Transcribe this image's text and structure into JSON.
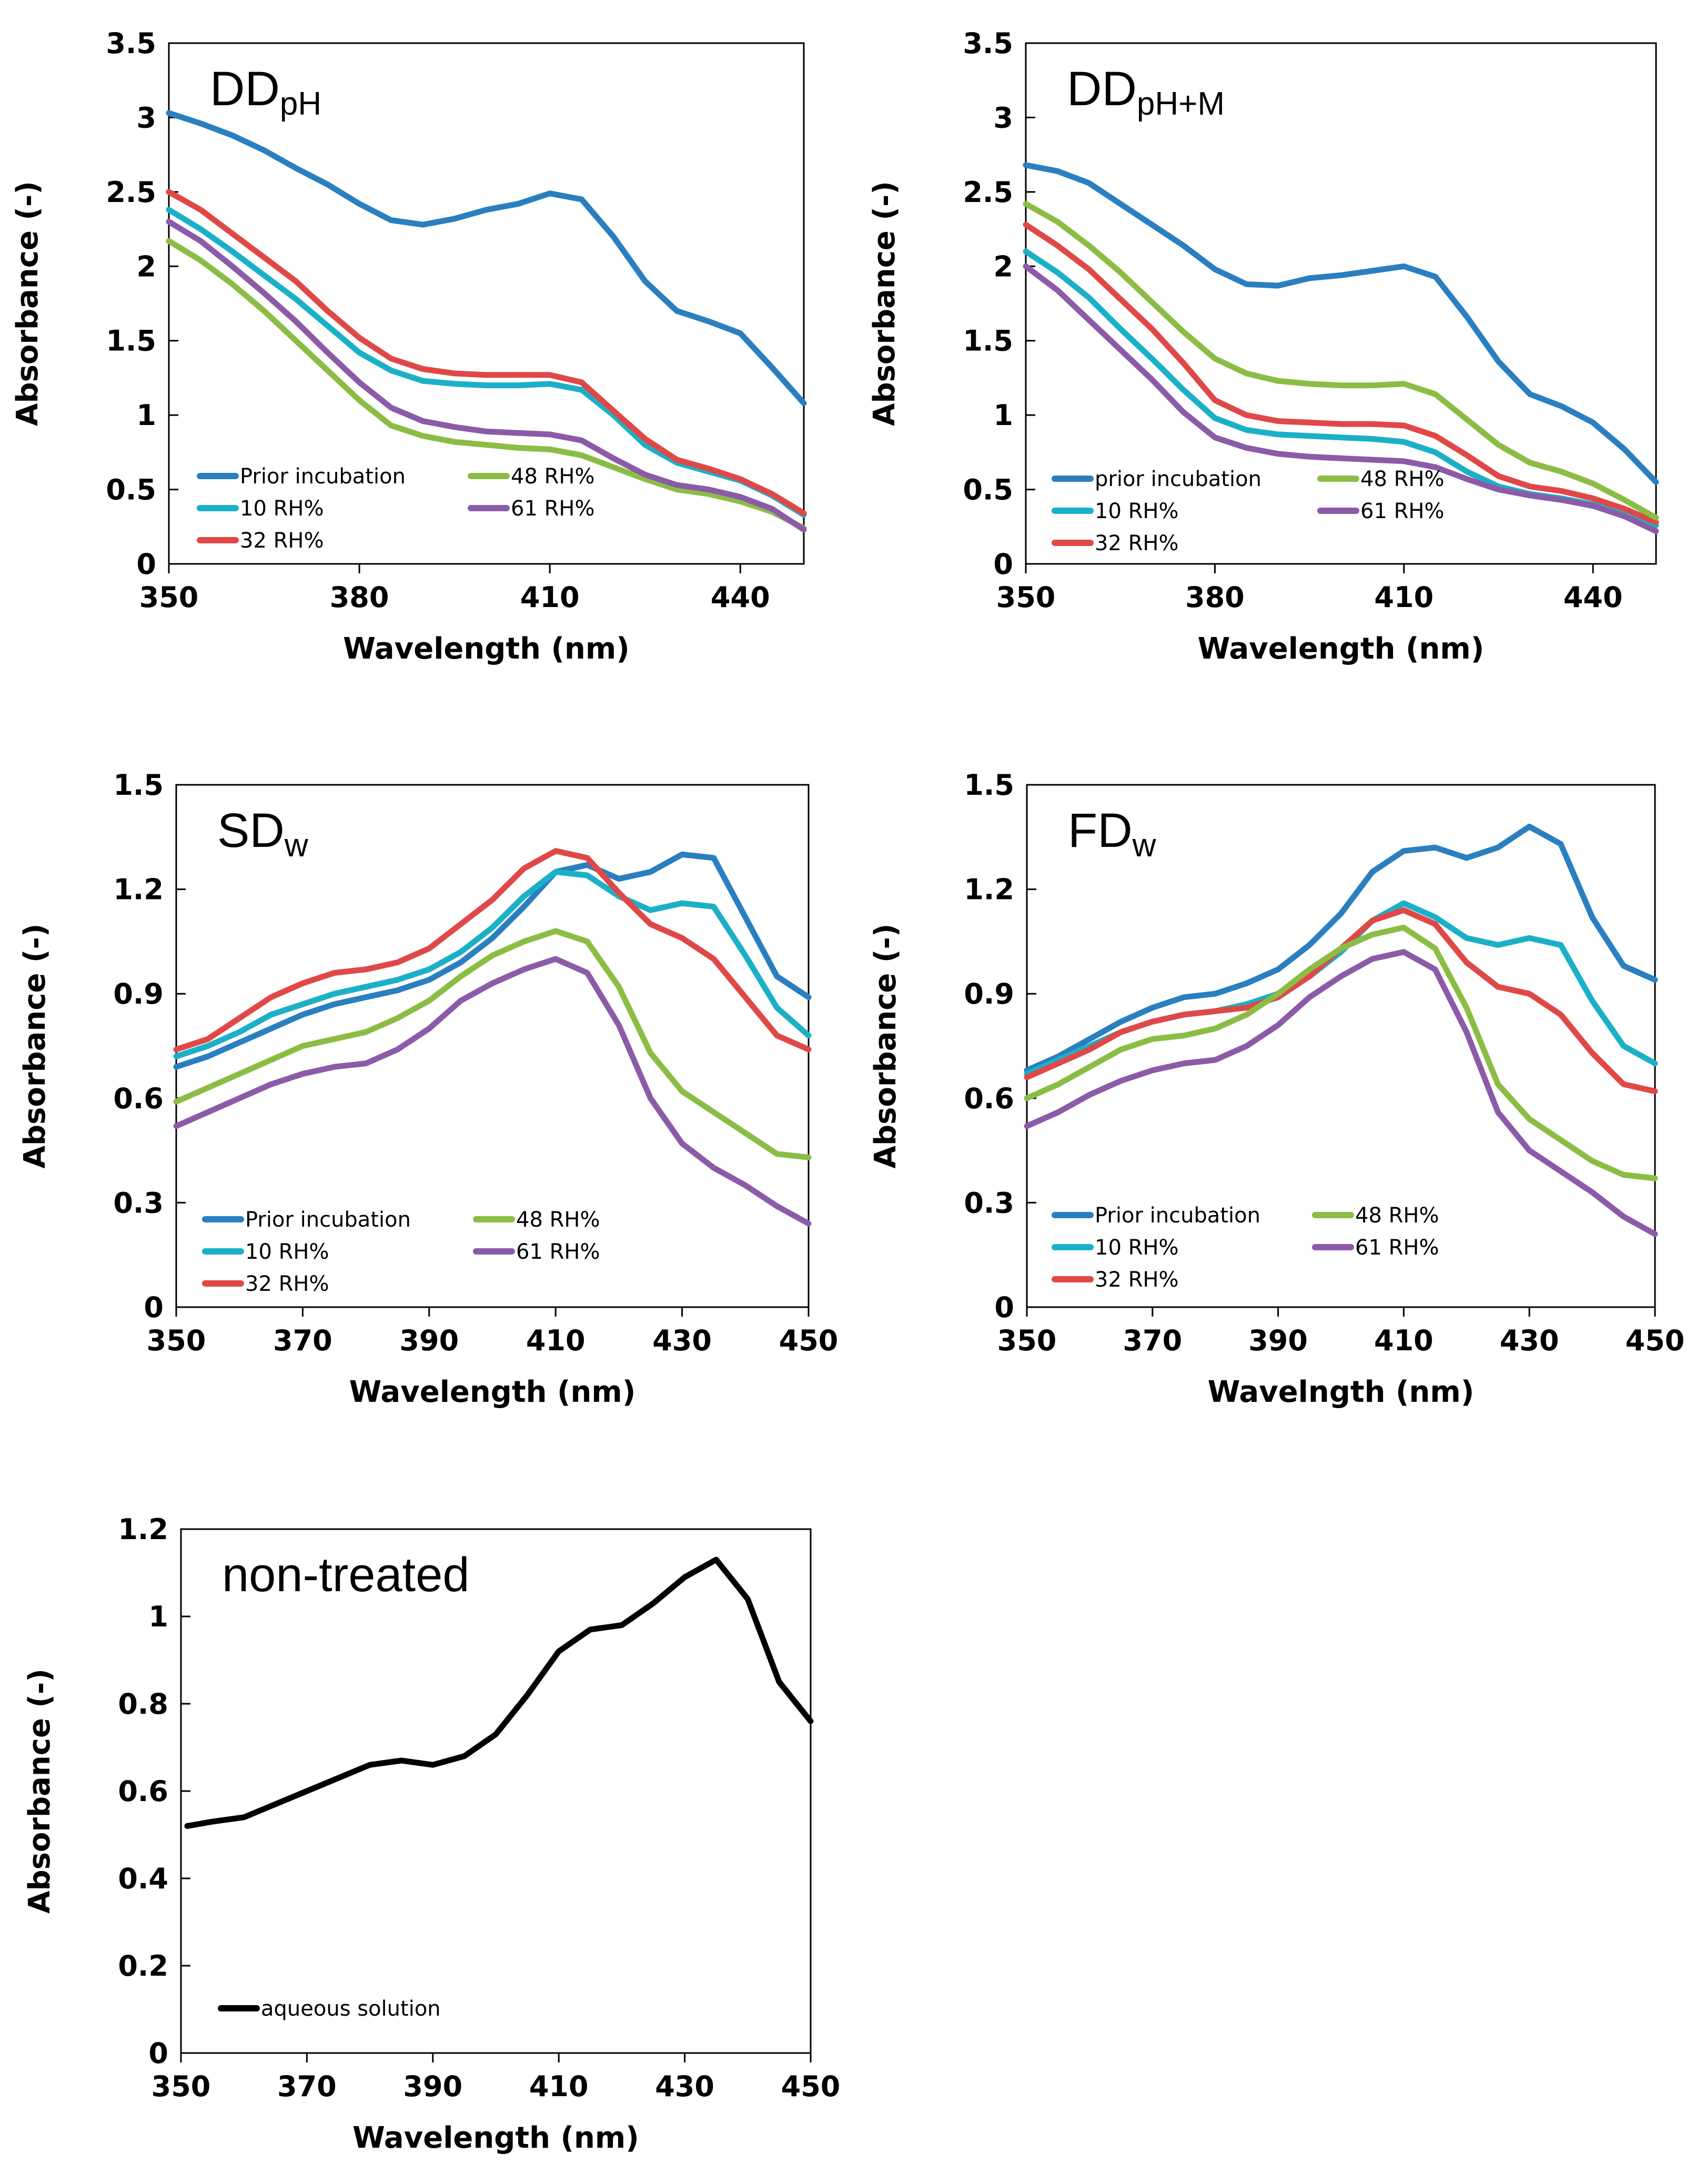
{
  "colors": {
    "prior": "#2a7fc0",
    "rh10": "#1bb0c8",
    "rh32": "#e04848",
    "rh48": "#8bbd45",
    "rh61": "#8c5ba8",
    "aqueous": "#000000"
  },
  "chart_data": [
    {
      "type": "line",
      "title": "DD",
      "title_subscript": "pH",
      "xlabel": "Wavelength (nm)",
      "ylabel": "Absorbance (-)",
      "xlim": [
        350,
        450
      ],
      "ylim": [
        0,
        3.5
      ],
      "xticks": [
        350,
        380,
        410,
        440
      ],
      "xtick_labels": [
        "350",
        "380",
        "410",
        "440"
      ],
      "yticks": [
        0,
        0.5,
        1,
        1.5,
        2,
        2.5,
        3,
        3.5
      ],
      "ytick_labels": [
        "0",
        "0.5",
        "1",
        "1.5",
        "2",
        "2.5",
        "3",
        "3.5"
      ],
      "x": [
        350,
        355,
        360,
        365,
        370,
        375,
        380,
        385,
        390,
        395,
        400,
        405,
        410,
        415,
        420,
        425,
        430,
        435,
        440,
        445,
        450
      ],
      "series": [
        {
          "name": "Prior incubation",
          "color_key": "prior",
          "values": [
            3.03,
            2.96,
            2.88,
            2.78,
            2.66,
            2.55,
            2.42,
            2.31,
            2.28,
            2.32,
            2.38,
            2.42,
            2.49,
            2.45,
            2.2,
            1.9,
            1.7,
            1.63,
            1.55,
            1.32,
            1.08
          ]
        },
        {
          "name": "10 RH%",
          "color_key": "rh10",
          "values": [
            2.38,
            2.25,
            2.1,
            1.94,
            1.78,
            1.6,
            1.42,
            1.3,
            1.23,
            1.21,
            1.2,
            1.2,
            1.21,
            1.17,
            1.0,
            0.8,
            0.68,
            0.62,
            0.56,
            0.46,
            0.33
          ]
        },
        {
          "name": "32 RH%",
          "color_key": "rh32",
          "values": [
            2.5,
            2.38,
            2.22,
            2.06,
            1.9,
            1.7,
            1.52,
            1.38,
            1.31,
            1.28,
            1.27,
            1.27,
            1.27,
            1.22,
            1.03,
            0.84,
            0.7,
            0.64,
            0.57,
            0.47,
            0.34
          ]
        },
        {
          "name": "48 RH%",
          "color_key": "rh48",
          "values": [
            2.17,
            2.04,
            1.88,
            1.7,
            1.5,
            1.3,
            1.1,
            0.93,
            0.86,
            0.82,
            0.8,
            0.78,
            0.77,
            0.73,
            0.65,
            0.57,
            0.5,
            0.47,
            0.42,
            0.35,
            0.24
          ]
        },
        {
          "name": "61 RH%",
          "color_key": "rh61",
          "values": [
            2.3,
            2.17,
            2.0,
            1.82,
            1.63,
            1.42,
            1.22,
            1.05,
            0.96,
            0.92,
            0.89,
            0.88,
            0.87,
            0.83,
            0.71,
            0.6,
            0.53,
            0.5,
            0.45,
            0.37,
            0.23
          ]
        }
      ],
      "legend": [
        "Prior incubation",
        "10 RH%",
        "32 RH%",
        "48 RH%",
        "61 RH%"
      ],
      "legend_position": "bottom-left"
    },
    {
      "type": "line",
      "title": "DD",
      "title_subscript": "pH+M",
      "xlabel": "Wavelength (nm)",
      "ylabel": "Absorbance (-)",
      "xlim": [
        350,
        450
      ],
      "ylim": [
        0,
        3.5
      ],
      "xticks": [
        350,
        380,
        410,
        440
      ],
      "xtick_labels": [
        "350",
        "380",
        "410",
        "440"
      ],
      "yticks": [
        0,
        0.5,
        1,
        1.5,
        2,
        2.5,
        3,
        3.5
      ],
      "ytick_labels": [
        "0",
        "0.5",
        "1",
        "1.5",
        "2",
        "2.5",
        "3",
        "3.5"
      ],
      "x": [
        350,
        355,
        360,
        365,
        370,
        375,
        380,
        385,
        390,
        395,
        400,
        405,
        410,
        415,
        420,
        425,
        430,
        435,
        440,
        445,
        450
      ],
      "series": [
        {
          "name": "prior incubation",
          "color_key": "prior",
          "values": [
            2.68,
            2.64,
            2.56,
            2.42,
            2.28,
            2.14,
            1.98,
            1.88,
            1.87,
            1.92,
            1.94,
            1.97,
            2.0,
            1.93,
            1.66,
            1.36,
            1.14,
            1.06,
            0.95,
            0.77,
            0.55
          ]
        },
        {
          "name": "10 RH%",
          "color_key": "rh10",
          "values": [
            2.1,
            1.96,
            1.79,
            1.58,
            1.38,
            1.17,
            0.98,
            0.9,
            0.87,
            0.86,
            0.85,
            0.84,
            0.82,
            0.75,
            0.62,
            0.52,
            0.47,
            0.44,
            0.4,
            0.33,
            0.26
          ]
        },
        {
          "name": "32 RH%",
          "color_key": "rh32",
          "values": [
            2.28,
            2.14,
            1.98,
            1.78,
            1.58,
            1.35,
            1.1,
            1.0,
            0.96,
            0.95,
            0.94,
            0.94,
            0.93,
            0.86,
            0.73,
            0.59,
            0.52,
            0.49,
            0.44,
            0.37,
            0.28
          ]
        },
        {
          "name": "48 RH%",
          "color_key": "rh48",
          "values": [
            2.42,
            2.3,
            2.14,
            1.96,
            1.76,
            1.56,
            1.38,
            1.28,
            1.23,
            1.21,
            1.2,
            1.2,
            1.21,
            1.14,
            0.97,
            0.8,
            0.68,
            0.62,
            0.54,
            0.43,
            0.31
          ]
        },
        {
          "name": "61 RH%",
          "color_key": "rh61",
          "values": [
            2.0,
            1.84,
            1.64,
            1.44,
            1.24,
            1.02,
            0.85,
            0.78,
            0.74,
            0.72,
            0.71,
            0.7,
            0.69,
            0.65,
            0.57,
            0.5,
            0.46,
            0.43,
            0.39,
            0.32,
            0.22
          ]
        }
      ],
      "legend": [
        "prior incubation",
        "10 RH%",
        "32 RH%",
        "48 RH%",
        "61 RH%"
      ],
      "legend_position": "bottom-left"
    },
    {
      "type": "line",
      "title": "SD",
      "title_subscript": "w",
      "xlabel": "Wavelength (nm)",
      "ylabel": "Absorbance (-)",
      "xlim": [
        350,
        450
      ],
      "ylim": [
        0,
        1.5
      ],
      "xticks": [
        350,
        370,
        390,
        410,
        430,
        450
      ],
      "xtick_labels": [
        "350",
        "370",
        "390",
        "410",
        "430",
        "450"
      ],
      "yticks": [
        0,
        0.3,
        0.6,
        0.9,
        1.2,
        1.5
      ],
      "ytick_labels": [
        "0",
        "0.3",
        "0.6",
        "0.9",
        "1.2",
        "1.5"
      ],
      "x": [
        350,
        355,
        360,
        365,
        370,
        375,
        380,
        385,
        390,
        395,
        400,
        405,
        410,
        415,
        420,
        425,
        430,
        435,
        440,
        445,
        450
      ],
      "series": [
        {
          "name": "Prior incubation",
          "color_key": "prior",
          "values": [
            0.69,
            0.72,
            0.76,
            0.8,
            0.84,
            0.87,
            0.89,
            0.91,
            0.94,
            0.99,
            1.06,
            1.15,
            1.25,
            1.27,
            1.23,
            1.25,
            1.3,
            1.29,
            1.12,
            0.95,
            0.89
          ]
        },
        {
          "name": "10 RH%",
          "color_key": "rh10",
          "values": [
            0.72,
            0.75,
            0.79,
            0.84,
            0.87,
            0.9,
            0.92,
            0.94,
            0.97,
            1.02,
            1.09,
            1.18,
            1.25,
            1.24,
            1.18,
            1.14,
            1.16,
            1.15,
            1.01,
            0.86,
            0.78
          ]
        },
        {
          "name": "32 RH%",
          "color_key": "rh32",
          "values": [
            0.74,
            0.77,
            0.83,
            0.89,
            0.93,
            0.96,
            0.97,
            0.99,
            1.03,
            1.1,
            1.17,
            1.26,
            1.31,
            1.29,
            1.19,
            1.1,
            1.06,
            1.0,
            0.89,
            0.78,
            0.74
          ]
        },
        {
          "name": "48 RH%",
          "color_key": "rh48",
          "values": [
            0.59,
            0.63,
            0.67,
            0.71,
            0.75,
            0.77,
            0.79,
            0.83,
            0.88,
            0.95,
            1.01,
            1.05,
            1.08,
            1.05,
            0.92,
            0.73,
            0.62,
            0.56,
            0.5,
            0.44,
            0.43
          ]
        },
        {
          "name": "61 RH%",
          "color_key": "rh61",
          "values": [
            0.52,
            0.56,
            0.6,
            0.64,
            0.67,
            0.69,
            0.7,
            0.74,
            0.8,
            0.88,
            0.93,
            0.97,
            1.0,
            0.96,
            0.81,
            0.6,
            0.47,
            0.4,
            0.35,
            0.29,
            0.24
          ]
        }
      ],
      "legend": [
        "Prior incubation",
        "10 RH%",
        "32 RH%",
        "48 RH%",
        "61 RH%"
      ],
      "legend_position": "bottom-left"
    },
    {
      "type": "line",
      "title": "FD",
      "title_subscript": "w",
      "xlabel": "Wavelngth (nm)",
      "ylabel": "Absorbance (-)",
      "xlim": [
        350,
        450
      ],
      "ylim": [
        0,
        1.5
      ],
      "xticks": [
        350,
        370,
        390,
        410,
        430,
        450
      ],
      "xtick_labels": [
        "350",
        "370",
        "390",
        "410",
        "430",
        "450"
      ],
      "yticks": [
        0,
        0.3,
        0.6,
        0.9,
        1.2,
        1.5
      ],
      "ytick_labels": [
        "0",
        "0.3",
        "0.6",
        "0.9",
        "1.2",
        "1.5"
      ],
      "x": [
        350,
        355,
        360,
        365,
        370,
        375,
        380,
        385,
        390,
        395,
        400,
        405,
        410,
        415,
        420,
        425,
        430,
        435,
        440,
        445,
        450
      ],
      "series": [
        {
          "name": "Prior incubation",
          "color_key": "prior",
          "values": [
            0.68,
            0.72,
            0.77,
            0.82,
            0.86,
            0.89,
            0.9,
            0.93,
            0.97,
            1.04,
            1.13,
            1.25,
            1.31,
            1.32,
            1.29,
            1.32,
            1.38,
            1.33,
            1.12,
            0.98,
            0.94
          ]
        },
        {
          "name": "10 RH%",
          "color_key": "rh10",
          "values": [
            0.67,
            0.71,
            0.75,
            0.79,
            0.82,
            0.84,
            0.85,
            0.87,
            0.9,
            0.95,
            1.02,
            1.11,
            1.16,
            1.12,
            1.06,
            1.04,
            1.06,
            1.04,
            0.88,
            0.75,
            0.7
          ]
        },
        {
          "name": "32 RH%",
          "color_key": "rh32",
          "values": [
            0.66,
            0.7,
            0.74,
            0.79,
            0.82,
            0.84,
            0.85,
            0.86,
            0.89,
            0.95,
            1.03,
            1.11,
            1.14,
            1.1,
            0.99,
            0.92,
            0.9,
            0.84,
            0.73,
            0.64,
            0.62
          ]
        },
        {
          "name": "48 RH%",
          "color_key": "rh48",
          "values": [
            0.6,
            0.64,
            0.69,
            0.74,
            0.77,
            0.78,
            0.8,
            0.84,
            0.9,
            0.97,
            1.03,
            1.07,
            1.09,
            1.03,
            0.86,
            0.64,
            0.54,
            0.48,
            0.42,
            0.38,
            0.37
          ]
        },
        {
          "name": "61 RH%",
          "color_key": "rh61",
          "values": [
            0.52,
            0.56,
            0.61,
            0.65,
            0.68,
            0.7,
            0.71,
            0.75,
            0.81,
            0.89,
            0.95,
            1.0,
            1.02,
            0.97,
            0.79,
            0.56,
            0.45,
            0.39,
            0.33,
            0.26,
            0.21
          ]
        }
      ],
      "legend": [
        "Prior incubation",
        "10 RH%",
        "32 RH%",
        "48 RH%",
        "61 RH%"
      ],
      "legend_position": "bottom-left"
    },
    {
      "type": "line",
      "title": "non-treated",
      "title_subscript": "",
      "xlabel": "Wavelength (nm)",
      "ylabel": "Absorbance (-)",
      "xlim": [
        350,
        450
      ],
      "ylim": [
        0,
        1.2
      ],
      "xticks": [
        350,
        370,
        390,
        410,
        430,
        450
      ],
      "xtick_labels": [
        "350",
        "370",
        "390",
        "410",
        "430",
        "450"
      ],
      "yticks": [
        0,
        0.2,
        0.4,
        0.6,
        0.8,
        1,
        1.2
      ],
      "ytick_labels": [
        "0",
        "0.2",
        "0.4",
        "0.6",
        "0.8",
        "1",
        "1.2"
      ],
      "x": [
        351,
        355,
        360,
        365,
        370,
        375,
        380,
        385,
        390,
        395,
        400,
        405,
        410,
        415,
        420,
        425,
        430,
        435,
        440,
        445,
        450
      ],
      "series": [
        {
          "name": "aqueous solution",
          "color_key": "aqueous",
          "values": [
            0.52,
            0.53,
            0.54,
            0.57,
            0.6,
            0.63,
            0.66,
            0.67,
            0.66,
            0.68,
            0.73,
            0.82,
            0.92,
            0.97,
            0.98,
            1.03,
            1.09,
            1.13,
            1.04,
            0.85,
            0.76
          ]
        }
      ],
      "legend": [
        "aqueous solution"
      ],
      "legend_position": "bottom-left"
    }
  ]
}
